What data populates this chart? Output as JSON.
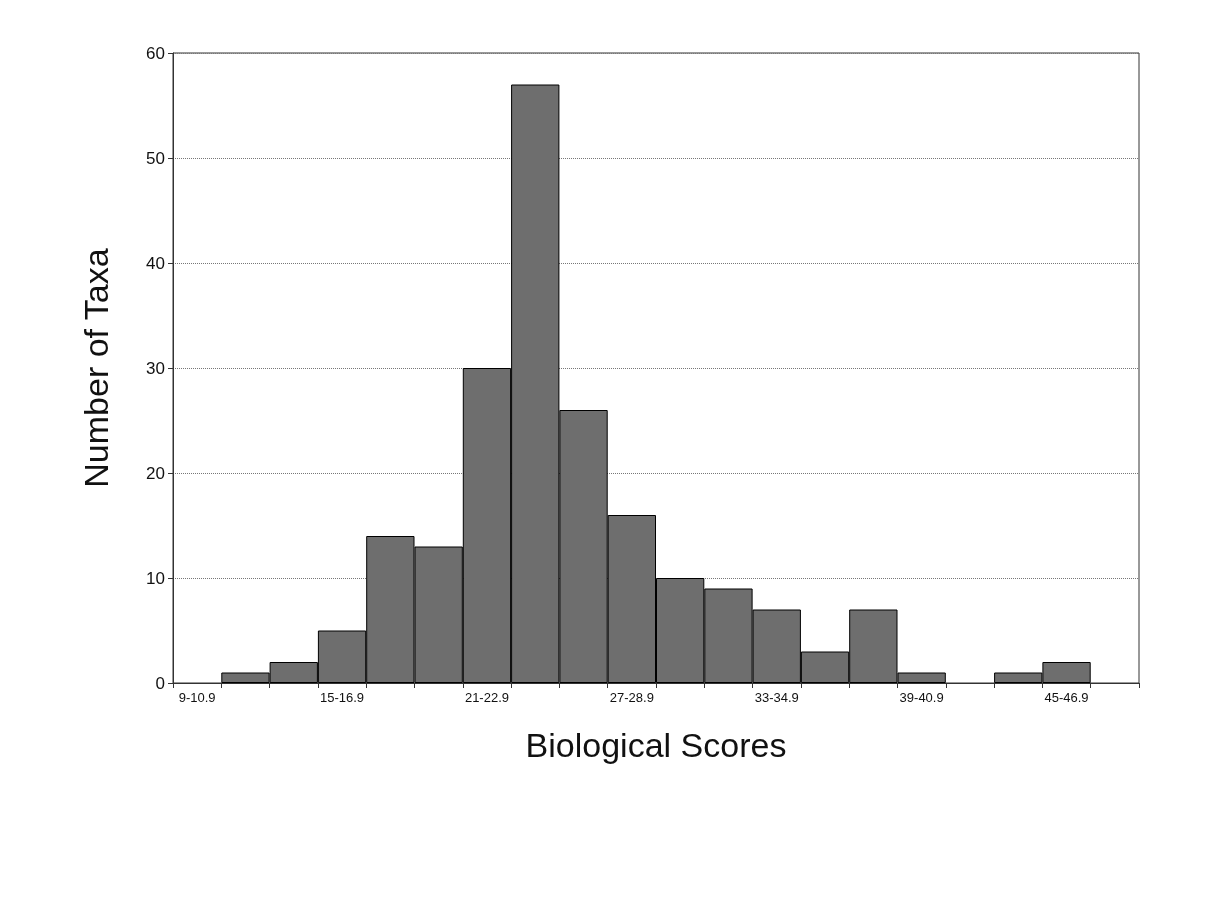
{
  "chart_data": {
    "type": "bar",
    "xlabel": "Biological Scores",
    "ylabel": "Number of Taxa",
    "categories": [
      "9-10.9",
      null,
      null,
      "15-16.9",
      null,
      null,
      "21-22.9",
      null,
      null,
      "27-28.9",
      null,
      null,
      "33-34.9",
      null,
      null,
      "39-40.9",
      null,
      null,
      "45-46.9",
      null
    ],
    "values": [
      0,
      1,
      2,
      5,
      14,
      13,
      30,
      57,
      26,
      16,
      10,
      9,
      7,
      3,
      7,
      1,
      0,
      1,
      2,
      0
    ],
    "color": "#6e6e6e",
    "ylim": [
      0,
      60
    ],
    "yticks": [
      0,
      10,
      20,
      30,
      40,
      50,
      60
    ],
    "grid": "y",
    "line_style": "dotted"
  }
}
